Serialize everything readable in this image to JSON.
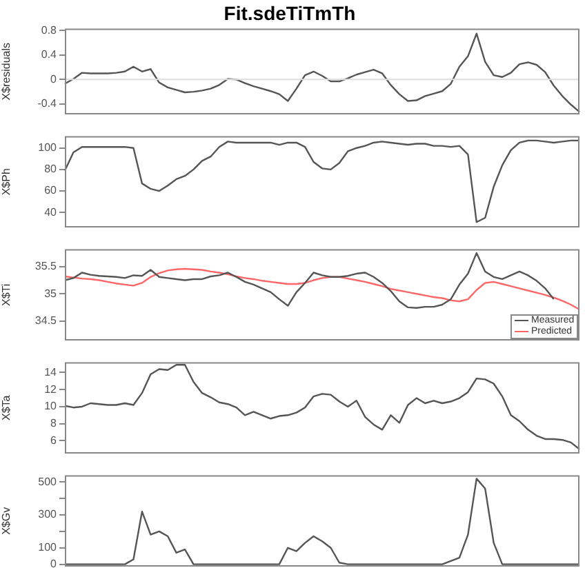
{
  "chart_data": [
    {
      "type": "line",
      "title": "Fit.sdeTiTmTh",
      "ylabel": "X$residuals",
      "categories": [
        null,
        null,
        null,
        null,
        null,
        null,
        null,
        null,
        null,
        null,
        null,
        null,
        null,
        null,
        null,
        null,
        null,
        null,
        null,
        null,
        null,
        null,
        null,
        null,
        null,
        null,
        null,
        null,
        null,
        null,
        null,
        null,
        null,
        null,
        null,
        null,
        null,
        null,
        null,
        null,
        null,
        null,
        null,
        null,
        null,
        null,
        null,
        null,
        null,
        null,
        null,
        null,
        null,
        null,
        null,
        null,
        null,
        null,
        null,
        null,
        null
      ],
      "series": [
        {
          "color": "#555555",
          "values": [
            -0.07,
            0.01,
            0.11,
            0.1,
            0.1,
            0.1,
            0.11,
            0.13,
            0.21,
            0.13,
            0.17,
            -0.05,
            -0.13,
            -0.17,
            -0.21,
            -0.2,
            -0.18,
            -0.15,
            -0.09,
            0.01,
            0.0,
            -0.06,
            -0.11,
            -0.15,
            -0.19,
            -0.24,
            -0.35,
            -0.15,
            0.07,
            0.13,
            0.06,
            -0.03,
            -0.03,
            0.02,
            0.08,
            0.12,
            0.16,
            0.1,
            -0.09,
            -0.24,
            -0.35,
            -0.34,
            -0.27,
            -0.23,
            -0.19,
            -0.07,
            0.21,
            0.38,
            0.75,
            0.29,
            0.07,
            0.04,
            0.11,
            0.25,
            0.28,
            0.24,
            0.12,
            -0.1,
            -0.27,
            -0.41,
            -0.53
          ]
        }
      ],
      "ylim": [
        -0.57,
        0.83
      ],
      "yticks": [
        -0.4,
        0.0,
        0.4,
        0.8
      ],
      "tick_labels": "y",
      "ref_lines": [
        {
          "axis": "y",
          "value": 0,
          "color": "#dddddd"
        }
      ]
    },
    {
      "type": "line",
      "ylabel": "X$Ph",
      "categories": [
        null,
        null,
        null,
        null,
        null,
        null,
        null,
        null,
        null,
        null,
        null,
        null,
        null,
        null,
        null,
        null,
        null,
        null,
        null,
        null,
        null,
        null,
        null,
        null,
        null,
        null,
        null,
        null,
        null,
        null,
        null,
        null,
        null,
        null,
        null,
        null,
        null,
        null,
        null,
        null,
        null,
        null,
        null,
        null,
        null,
        null,
        null,
        null,
        null,
        null,
        null,
        null,
        null,
        null,
        null,
        null,
        null,
        null,
        null,
        null,
        null
      ],
      "series": [
        {
          "color": "#555555",
          "values": [
            79,
            96,
            101,
            101,
            101,
            101,
            101,
            101,
            100,
            67,
            62,
            60,
            65,
            71,
            74,
            80,
            88,
            92,
            101,
            106,
            105,
            105,
            105,
            105,
            105,
            103,
            105,
            105,
            101,
            87,
            81,
            80,
            86,
            97,
            100,
            102,
            105,
            106,
            105,
            104,
            103,
            104,
            104,
            102,
            102,
            101,
            102,
            94,
            31,
            35,
            64,
            84,
            98,
            105,
            107,
            107,
            106,
            105,
            106,
            107,
            107
          ]
        }
      ],
      "ylim": [
        26,
        111
      ],
      "yticks": [
        40,
        60,
        80,
        100
      ],
      "tick_labels": "y"
    },
    {
      "type": "line",
      "ylabel": "X$Ti",
      "legend": "bottom right",
      "categories": [
        null,
        null,
        null,
        null,
        null,
        null,
        null,
        null,
        null,
        null,
        null,
        null,
        null,
        null,
        null,
        null,
        null,
        null,
        null,
        null,
        null,
        null,
        null,
        null,
        null,
        null,
        null,
        null,
        null,
        null,
        null,
        null,
        null,
        null,
        null,
        null,
        null,
        null,
        null,
        null,
        null,
        null,
        null,
        null,
        null,
        null,
        null,
        null,
        null,
        null,
        null,
        null,
        null,
        null,
        null,
        null,
        null,
        null,
        null,
        null,
        null
      ],
      "series": [
        {
          "name": "Measured",
          "color": "#555555",
          "values": [
            35.25,
            35.29,
            35.39,
            35.35,
            35.33,
            35.32,
            35.31,
            35.29,
            35.34,
            35.33,
            35.44,
            35.31,
            35.29,
            35.27,
            35.25,
            35.27,
            35.27,
            35.32,
            35.34,
            35.39,
            35.31,
            35.22,
            35.17,
            35.1,
            35.03,
            34.9,
            34.78,
            35.03,
            35.2,
            35.39,
            35.34,
            35.31,
            35.31,
            35.33,
            35.37,
            35.39,
            35.31,
            35.2,
            35.05,
            34.86,
            34.75,
            34.74,
            34.76,
            34.76,
            34.8,
            34.9,
            35.17,
            35.37,
            35.75,
            35.41,
            35.31,
            35.27,
            35.34,
            35.41,
            35.34,
            35.24,
            35.1,
            34.9,
            null,
            null,
            null
          ]
        },
        {
          "name": "Predicted",
          "color": "#ff6666",
          "values": [
            35.32,
            35.3,
            35.28,
            35.27,
            35.25,
            35.22,
            35.19,
            35.17,
            35.15,
            35.2,
            35.31,
            35.38,
            35.43,
            35.45,
            35.46,
            35.45,
            35.44,
            35.41,
            35.39,
            35.36,
            35.32,
            35.29,
            35.27,
            35.24,
            35.22,
            35.2,
            35.18,
            35.18,
            35.2,
            35.25,
            35.29,
            35.31,
            35.31,
            35.28,
            35.25,
            35.22,
            35.18,
            35.14,
            35.09,
            35.06,
            35.03,
            35.0,
            34.97,
            34.94,
            34.92,
            34.88,
            34.86,
            34.9,
            35.07,
            35.2,
            35.22,
            35.18,
            35.14,
            35.1,
            35.06,
            35.02,
            34.98,
            34.93,
            34.87,
            34.8,
            34.71
          ]
        }
      ],
      "ylim": [
        34.14,
        35.82
      ],
      "yticks": [
        34.5,
        35.0,
        35.5
      ],
      "tick_labels": "y"
    },
    {
      "type": "line",
      "ylabel": "X$Ta",
      "categories": [
        null,
        null,
        null,
        null,
        null,
        null,
        null,
        null,
        null,
        null,
        null,
        null,
        null,
        null,
        null,
        null,
        null,
        null,
        null,
        null,
        null,
        null,
        null,
        null,
        null,
        null,
        null,
        null,
        null,
        null,
        null,
        null,
        null,
        null,
        null,
        null,
        null,
        null,
        null,
        null,
        null,
        null,
        null,
        null,
        null,
        null,
        null,
        null,
        null,
        null,
        null,
        null,
        null,
        null,
        null,
        null,
        null,
        null,
        null,
        null,
        null
      ],
      "series": [
        {
          "color": "#555555",
          "values": [
            10.1,
            9.9,
            10,
            10.4,
            10.3,
            10.2,
            10.2,
            10.4,
            10.2,
            11.6,
            13.8,
            14.4,
            14.3,
            14.9,
            14.9,
            12.9,
            11.6,
            11.1,
            10.5,
            10.3,
            9.9,
            9.0,
            9.4,
            9.0,
            8.6,
            8.9,
            9.0,
            9.3,
            9.9,
            11.2,
            11.5,
            11.4,
            10.6,
            10,
            10.7,
            8.8,
            7.9,
            7.3,
            9.0,
            8.1,
            10.2,
            11,
            10.4,
            10.7,
            10.4,
            10.6,
            11,
            11.7,
            13.3,
            13.2,
            12.7,
            11.2,
            9.0,
            8.3,
            7.3,
            6.6,
            6.2,
            6.2,
            6.1,
            5.8,
            5.0
          ]
        }
      ],
      "ylim": [
        4.5,
        15.2
      ],
      "yticks": [
        6,
        8,
        10,
        12,
        14
      ],
      "tick_labels": "y"
    },
    {
      "type": "line",
      "ylabel": "X$Gv",
      "categories": [
        null,
        null,
        null,
        null,
        null,
        null,
        null,
        null,
        null,
        null,
        null,
        null,
        null,
        null,
        null,
        null,
        null,
        null,
        null,
        null,
        null,
        null,
        null,
        null,
        null,
        null,
        null,
        null,
        null,
        null,
        null,
        null,
        null,
        null,
        null,
        null,
        null,
        null,
        null,
        null,
        null,
        null,
        null,
        null,
        null,
        null,
        null,
        null,
        null,
        null,
        null,
        null,
        null,
        null,
        null,
        null,
        null,
        null,
        null,
        null,
        null
      ],
      "series": [
        {
          "color": "#555555",
          "values": [
            0,
            0,
            0,
            0,
            0,
            0,
            0,
            0,
            30,
            320,
            180,
            200,
            170,
            70,
            90,
            0,
            0,
            0,
            0,
            0,
            0,
            0,
            0,
            0,
            0,
            0,
            100,
            80,
            130,
            170,
            140,
            100,
            10,
            0,
            0,
            0,
            0,
            0,
            0,
            0,
            0,
            0,
            0,
            0,
            0,
            20,
            40,
            180,
            520,
            460,
            130,
            0,
            0,
            0,
            0,
            0,
            0,
            0,
            0,
            0,
            0
          ]
        }
      ],
      "ylim": [
        -14,
        540
      ],
      "yticks": [
        0,
        100,
        {
          "value": 200,
          "label": null
        },
        300,
        {
          "value": 400,
          "label": null
        },
        500
      ],
      "tick_labels": "y"
    }
  ]
}
